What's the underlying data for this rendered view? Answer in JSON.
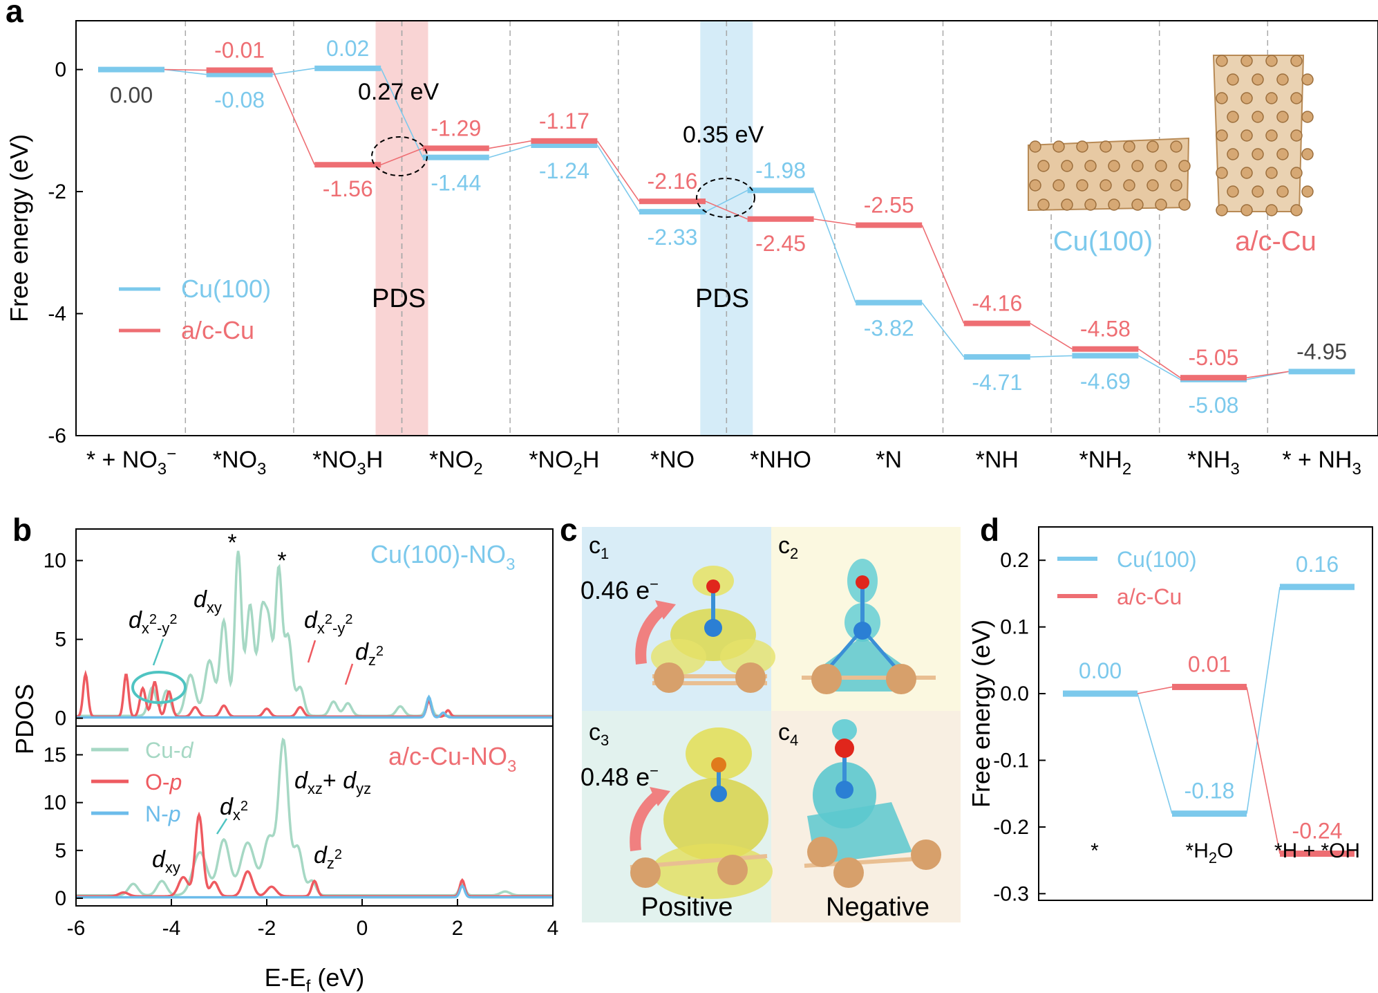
{
  "panels": {
    "a": "a",
    "b": "b",
    "c": "c",
    "d": "d"
  },
  "colors": {
    "cu100": "#7cc9ec",
    "acu": "#ee6e73",
    "cud": "#a6d8c4",
    "op": "#ee5a60",
    "np": "#6cbcea",
    "pds_red": "#f9d4d4",
    "pds_blue": "#d5ecf8"
  },
  "chart_data": [
    {
      "id": "a",
      "type": "step-energy-diagram",
      "ylabel": "Free energy (eV)",
      "ylim": [
        -6,
        0.8
      ],
      "yticks": [
        "0",
        "-2",
        "-4",
        "-6"
      ],
      "categories": [
        "* + NO",
        "*NO",
        "*NO",
        "*NO",
        "*NO",
        "*NO",
        "*NHO",
        "*N",
        "*NH",
        "*NH",
        "*NH",
        "* + NH"
      ],
      "cat_subs": [
        "3",
        "3",
        "3",
        "2",
        "2",
        "",
        "",
        "",
        "",
        "2",
        "3",
        "3"
      ],
      "cat_sups": [
        "−",
        "",
        "",
        "",
        "",
        "",
        "",
        "",
        "",
        "",
        "",
        ""
      ],
      "cat_tails": [
        "",
        "",
        "H",
        "",
        "H",
        "",
        "",
        "",
        "",
        "",
        "",
        ""
      ],
      "series": [
        {
          "name": "Cu(100)",
          "values": [
            0.0,
            -0.08,
            0.02,
            -1.44,
            -1.24,
            -2.33,
            -1.98,
            -3.82,
            -4.71,
            -4.69,
            -5.08,
            -4.95
          ],
          "labels": [
            "0.00",
            "-0.08",
            "0.02",
            "-1.44",
            "-1.24",
            "-2.33",
            "-1.98",
            "-3.82",
            "-4.71",
            "-4.69",
            "-5.08",
            "-4.95"
          ]
        },
        {
          "name": "a/c-Cu",
          "values": [
            null,
            -0.01,
            -1.56,
            -1.29,
            -1.17,
            -2.16,
            -2.45,
            -2.55,
            -4.16,
            -4.58,
            -5.05,
            null
          ],
          "labels": [
            "",
            "-0.01",
            "-1.56",
            "-1.29",
            "-1.17",
            "-2.16",
            "-2.45",
            "-2.55",
            "-4.16",
            "-4.58",
            "-5.05",
            ""
          ]
        }
      ],
      "annotations": {
        "barrier1": "0.27 eV",
        "barrier2": "0.35 eV",
        "pds1": "PDS",
        "pds2": "PDS",
        "struct1": "Cu(100)",
        "struct2": "a/c-Cu"
      },
      "legend": [
        "Cu(100)",
        "a/c-Cu"
      ]
    },
    {
      "id": "b",
      "type": "line",
      "xlabel_main": "E-E",
      "xlabel_sub": "f",
      "xlabel_unit": " (eV)",
      "ylabel": "PDOS",
      "xlim": [
        -6,
        4
      ],
      "xticks": [
        "-6",
        "-4",
        "-2",
        "0",
        "2",
        "4"
      ],
      "top": {
        "title_main": "Cu(100)-NO",
        "title_sub": "3",
        "ylim": [
          -0.5,
          12
        ],
        "yticks": [
          "0",
          "5",
          "10"
        ],
        "stars": [
          "*",
          "*"
        ]
      },
      "bottom": {
        "title_main": "a/c-Cu-NO",
        "title_sub": "3",
        "ylim": [
          -0.8,
          18
        ],
        "yticks": [
          "0",
          "5",
          "10",
          "15"
        ]
      },
      "legend": [
        {
          "main": "Cu-",
          "it": "d"
        },
        {
          "main": "O-",
          "it": "p"
        },
        {
          "main": "N-",
          "it": "p"
        }
      ],
      "orbital_labels": {
        "d": "d",
        "x2y2": "x",
        "two": "2",
        "minus_y": "-y",
        "xy": "xy",
        "z": "z",
        "x": "x",
        "xz": "xz",
        "yz": "yz",
        "plus": "+ "
      }
    },
    {
      "id": "c",
      "type": "image-grid",
      "cells": [
        {
          "main": "c",
          "sub": "1"
        },
        {
          "main": "c",
          "sub": "2"
        },
        {
          "main": "c",
          "sub": "3"
        },
        {
          "main": "c",
          "sub": "4"
        }
      ],
      "charges": {
        "c1": "0.46 e",
        "c3": "0.48 e",
        "sup": "−"
      },
      "bottom_labels": {
        "left": "Positive",
        "right": "Negative"
      }
    },
    {
      "id": "d",
      "type": "step-energy-diagram",
      "ylabel": "Free energy (eV)",
      "ylim": [
        -0.31,
        0.25
      ],
      "yticks": [
        "0.2",
        "0.1",
        "0.0",
        "-0.1",
        "-0.2",
        "-0.3"
      ],
      "categories": [
        "*",
        "*H",
        "*H + *OH"
      ],
      "cat_subs": [
        "",
        "2",
        ""
      ],
      "cat_tails": [
        "",
        "O",
        ""
      ],
      "series": [
        {
          "name": "Cu(100)",
          "values": [
            0.0,
            -0.18,
            0.16
          ],
          "labels": [
            "0.00",
            "-0.18",
            "0.16"
          ]
        },
        {
          "name": "a/c-Cu",
          "values": [
            null,
            0.01,
            -0.24
          ],
          "labels": [
            "",
            "0.01",
            "-0.24"
          ]
        }
      ],
      "legend": [
        "Cu(100)",
        "a/c-Cu"
      ]
    }
  ]
}
